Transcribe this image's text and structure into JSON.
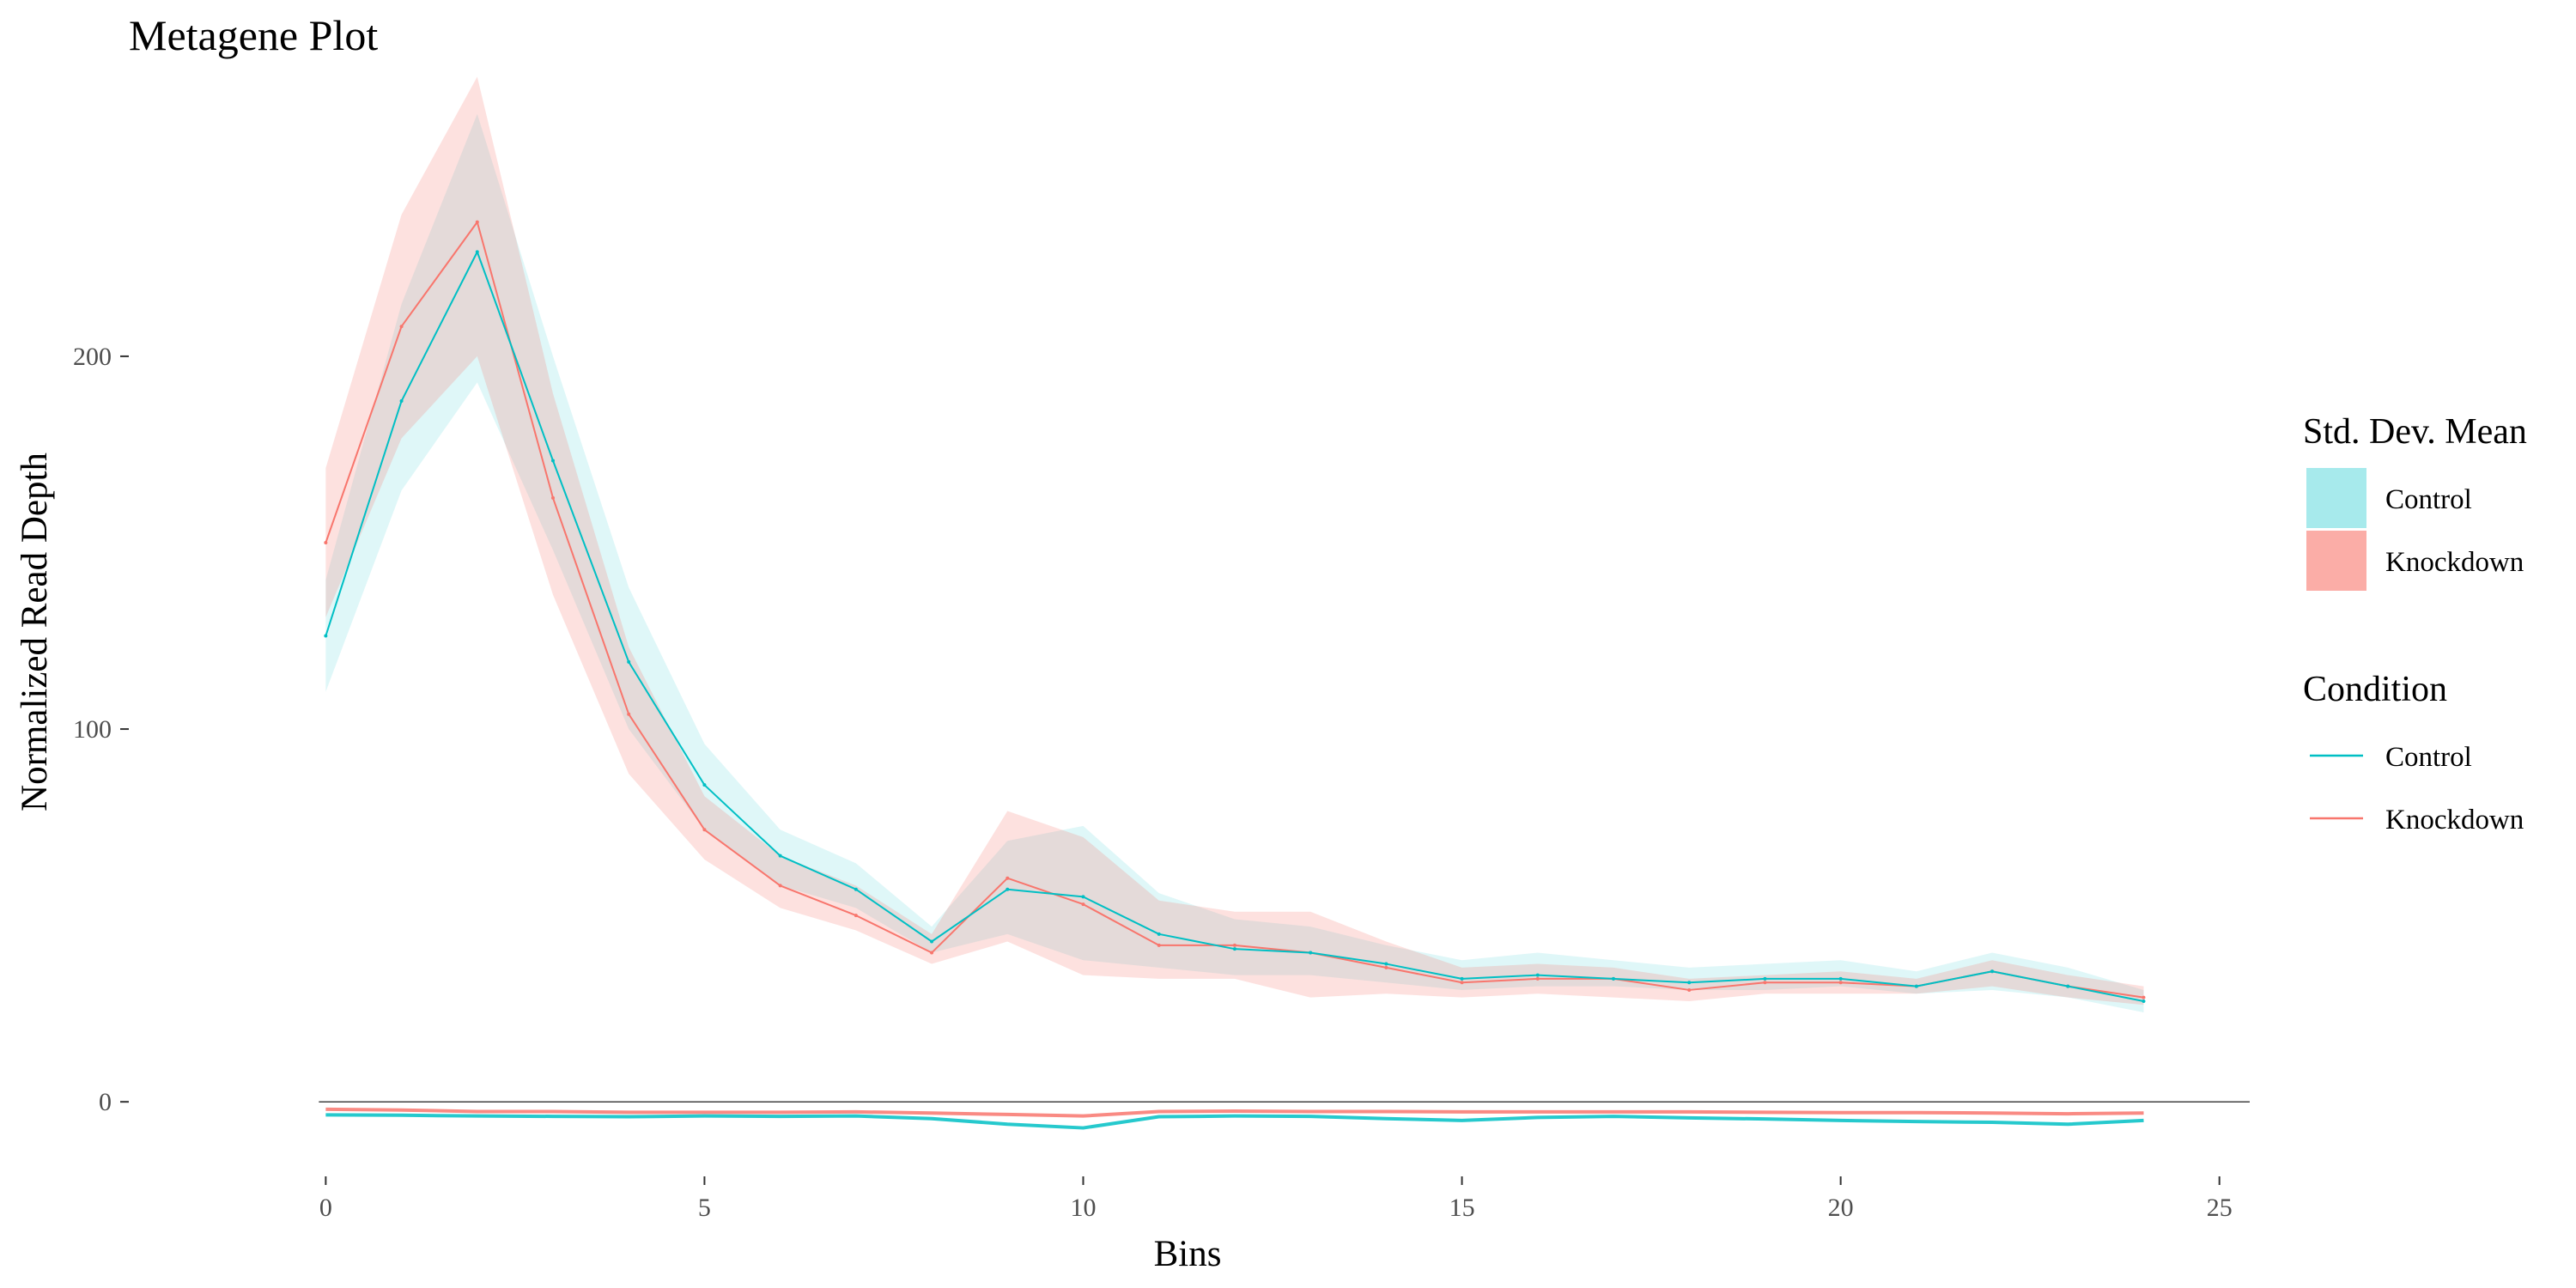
{
  "chart_data": {
    "type": "line",
    "title": "Metagene Plot",
    "xlabel": "Bins",
    "ylabel": "Normalized Read Depth",
    "xlim": [
      -2.6,
      25.4
    ],
    "ylim": [
      -20,
      276
    ],
    "xticks": [
      0,
      5,
      10,
      15,
      20,
      25
    ],
    "yticks": [
      0,
      100,
      200
    ],
    "grid": false,
    "reference_line_y": 0,
    "legend_position": "right",
    "x": [
      0,
      1,
      2,
      3,
      4,
      5,
      6,
      7,
      8,
      9,
      10,
      11,
      12,
      13,
      14,
      15,
      16,
      17,
      18,
      19,
      20,
      21,
      22,
      23,
      24
    ],
    "series": [
      {
        "name": "Control",
        "color": "#00BFC4",
        "fill_color": "#6DDCE0",
        "mean": [
          125,
          188,
          228,
          172,
          118,
          85,
          66,
          57,
          43,
          57,
          55,
          45,
          41,
          40,
          37,
          33,
          34,
          33,
          32,
          33,
          33,
          31,
          35,
          31,
          27
        ],
        "lower": [
          110,
          164,
          193,
          148,
          100,
          73,
          58,
          52,
          40,
          45,
          38,
          36,
          34,
          34,
          32,
          30,
          31,
          31,
          30,
          30,
          31,
          29,
          30,
          28,
          24
        ],
        "upper": [
          140,
          214,
          265,
          200,
          138,
          96,
          73,
          64,
          47,
          70,
          74,
          56,
          49,
          47,
          42,
          38,
          40,
          38,
          36,
          37,
          38,
          35,
          40,
          36,
          30
        ],
        "near_zero": [
          -3.5,
          -3.6,
          -3.8,
          -3.9,
          -4.0,
          -3.8,
          -3.9,
          -3.8,
          -4.5,
          -6,
          -7,
          -4.0,
          -3.8,
          -3.9,
          -4.5,
          -5.0,
          -4.2,
          -3.9,
          -4.3,
          -4.6,
          -5.0,
          -5.3,
          -5.5,
          -6.0,
          -5.0
        ]
      },
      {
        "name": "Knockdown",
        "color": "#F8766D",
        "fill_color": "#F8766D",
        "mean": [
          150,
          208,
          236,
          162,
          104,
          73,
          58,
          50,
          40,
          60,
          53,
          42,
          42,
          40,
          36,
          32,
          33,
          33,
          30,
          32,
          32,
          31,
          35,
          31,
          28
        ],
        "lower": [
          130,
          178,
          200,
          136,
          88,
          65,
          52,
          46,
          37,
          43,
          34,
          33,
          33,
          28,
          29,
          28,
          29,
          28,
          27,
          29,
          29,
          29,
          31,
          28,
          26
        ],
        "upper": [
          170,
          238,
          275,
          190,
          122,
          82,
          66,
          58,
          45,
          78,
          71,
          54,
          51,
          51,
          43,
          36,
          37,
          36,
          33,
          34,
          35,
          33,
          38,
          34,
          31
        ],
        "near_zero": [
          -2.0,
          -2.2,
          -2.6,
          -2.6,
          -2.8,
          -2.8,
          -2.8,
          -2.7,
          -3.0,
          -3.4,
          -3.8,
          -2.6,
          -2.5,
          -2.6,
          -2.6,
          -2.7,
          -2.7,
          -2.7,
          -2.7,
          -2.8,
          -2.9,
          -2.9,
          -3.0,
          -3.2,
          -3.0
        ]
      }
    ],
    "legends": [
      {
        "title": "Std. Dev. Mean",
        "kind": "fill",
        "items": [
          "Control",
          "Knockdown"
        ]
      },
      {
        "title": "Condition",
        "kind": "line",
        "items": [
          "Control",
          "Knockdown"
        ]
      }
    ]
  }
}
